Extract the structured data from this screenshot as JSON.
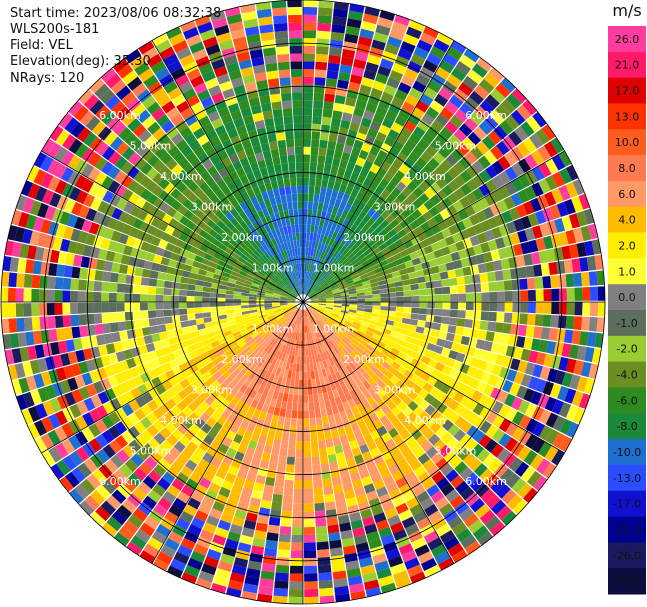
{
  "header": {
    "start_time": "Start time: 2023/08/06 08:32:38",
    "instrument": "WLS200s-181",
    "field": "Field: VEL",
    "elevation": "Elevation(deg): 35.30",
    "nrays": "NRays: 120"
  },
  "chart_data": {
    "type": "heatmap",
    "projection": "polar-ppi",
    "field": "VEL",
    "units": "m/s",
    "nrays": 120,
    "elevation_deg": 35.3,
    "max_range_km": 7,
    "range_rings_km": [
      1,
      2,
      3,
      4,
      5,
      6,
      7
    ],
    "ring_labels": [
      "1.00km",
      "2.00km",
      "3.00km",
      "4.00km",
      "5.00km",
      "6.00km"
    ],
    "spoke_interval_deg": 30,
    "colorbar": {
      "label": "m/s",
      "ticks": [
        "26.0",
        "21.0",
        "17.0",
        "13.0",
        "10.0",
        "8.0",
        "6.0",
        "4.0",
        "2.0",
        "1.0",
        "0.0",
        "-1.0",
        "-2.0",
        "-4.0",
        "-6.0",
        "-8.0",
        "-10.0",
        "-13.0",
        "-17.0",
        "-21.0",
        "-26.0",
        "-30.0"
      ],
      "colors": [
        "#ff3d9e",
        "#ff1a6a",
        "#e00000",
        "#ff3300",
        "#ff5c1f",
        "#ff7a50",
        "#ff9966",
        "#ffbb00",
        "#ffee00",
        "#ffff33",
        "#808080",
        "#5c6e5c",
        "#9acd32",
        "#6b8e23",
        "#2e8b1f",
        "#1a8a3a",
        "#1e6fd0",
        "#2b4cff",
        "#1010d0",
        "#000090",
        "#1a1a60",
        "#0d0d40"
      ]
    },
    "pattern": "upper half negative (away), lower half positive (toward); near-zero band along horizontal axis; noisy beyond ~4.5 km"
  }
}
